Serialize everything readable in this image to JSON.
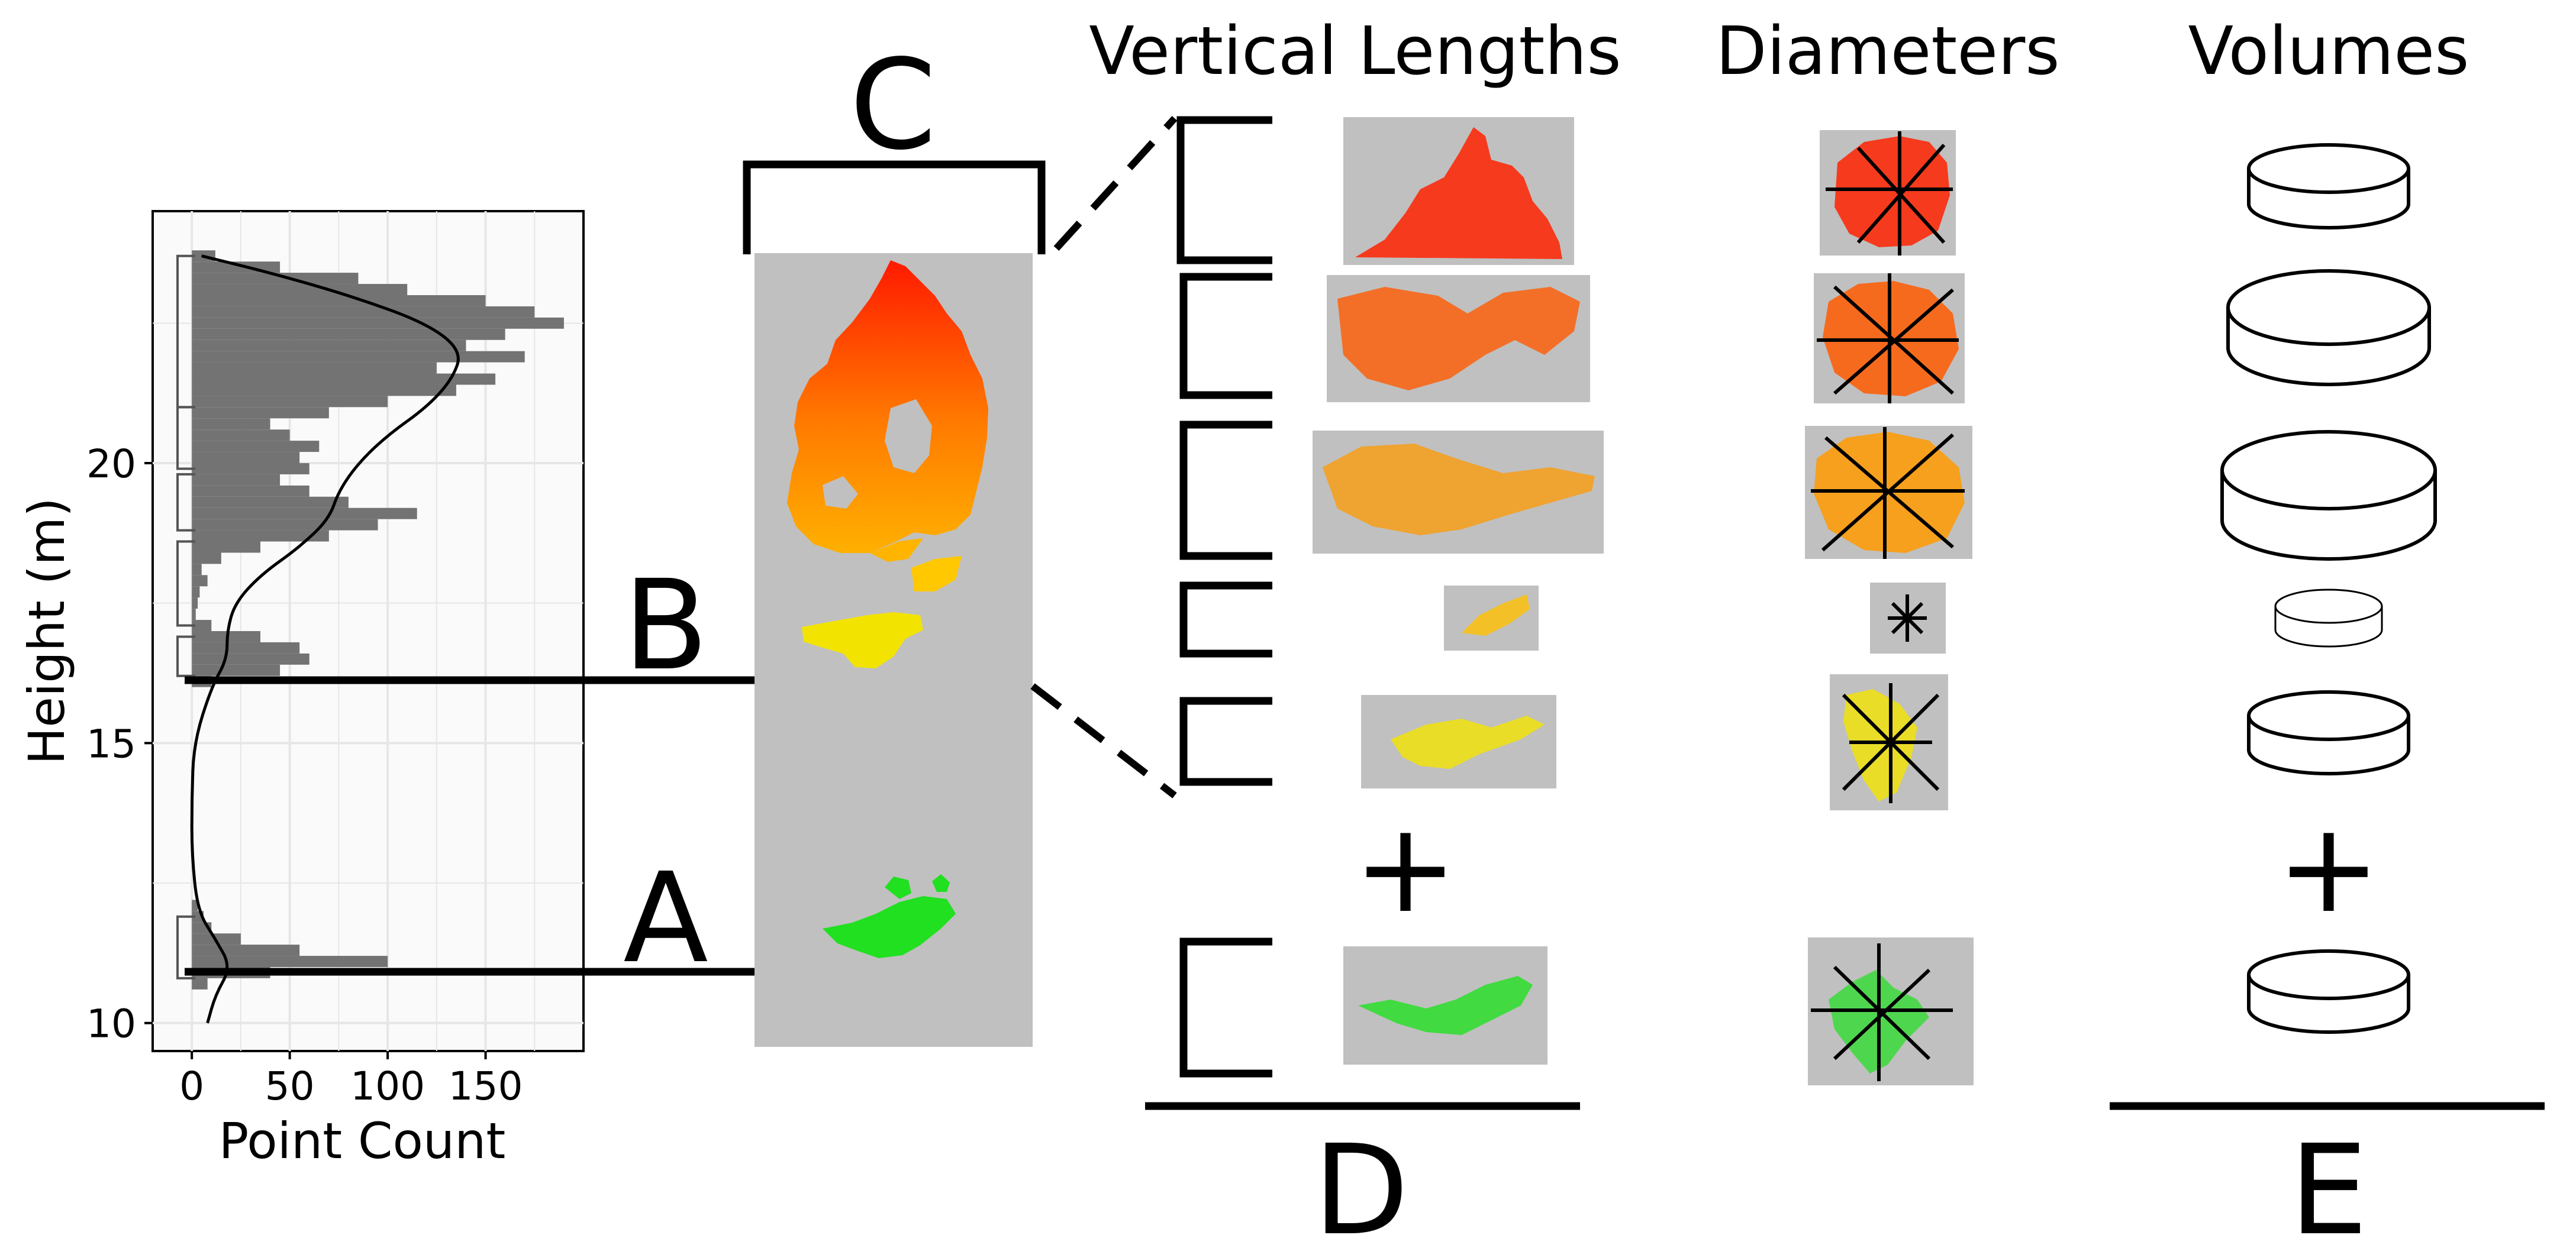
{
  "headers": {
    "vertical_lengths": "Vertical Lengths",
    "diameters": "Diameters",
    "volumes": "Volumes"
  },
  "labels": {
    "a": "A",
    "b": "B",
    "c": "C",
    "d": "D",
    "e": "E"
  },
  "operators": {
    "plus_left": "+",
    "plus_right": "+"
  },
  "colors": {
    "background_panel": "#c0c0c0",
    "histogram_bar": "#737373",
    "gradient_top": "#ff1a00",
    "gradient_mid": "#ff9900",
    "gradient_low": "#f5e400",
    "ground_layer": "#1ee01e"
  },
  "chart_data": {
    "type": "bar",
    "orientation": "horizontal",
    "xlabel": "Point Count",
    "ylabel": "Height (m)",
    "x_ticks": [
      "0",
      "50",
      "100",
      "150"
    ],
    "y_ticks": [
      "10",
      "15",
      "20"
    ],
    "xlim": [
      -20,
      200
    ],
    "ylim": [
      9.5,
      24.5
    ],
    "grid": true,
    "bin_width": 0.2,
    "bins": [
      {
        "h": 23.7,
        "c": 12
      },
      {
        "h": 23.5,
        "c": 45
      },
      {
        "h": 23.3,
        "c": 85
      },
      {
        "h": 23.1,
        "c": 110
      },
      {
        "h": 22.9,
        "c": 150
      },
      {
        "h": 22.7,
        "c": 175
      },
      {
        "h": 22.5,
        "c": 190
      },
      {
        "h": 22.3,
        "c": 160
      },
      {
        "h": 22.1,
        "c": 140
      },
      {
        "h": 21.9,
        "c": 170
      },
      {
        "h": 21.7,
        "c": 125
      },
      {
        "h": 21.5,
        "c": 155
      },
      {
        "h": 21.3,
        "c": 135
      },
      {
        "h": 21.1,
        "c": 100
      },
      {
        "h": 20.9,
        "c": 70
      },
      {
        "h": 20.7,
        "c": 40
      },
      {
        "h": 20.5,
        "c": 50
      },
      {
        "h": 20.3,
        "c": 65
      },
      {
        "h": 20.1,
        "c": 55
      },
      {
        "h": 19.9,
        "c": 60
      },
      {
        "h": 19.7,
        "c": 45
      },
      {
        "h": 19.5,
        "c": 60
      },
      {
        "h": 19.3,
        "c": 80
      },
      {
        "h": 19.1,
        "c": 115
      },
      {
        "h": 18.9,
        "c": 95
      },
      {
        "h": 18.7,
        "c": 70
      },
      {
        "h": 18.5,
        "c": 35
      },
      {
        "h": 18.3,
        "c": 15
      },
      {
        "h": 18.1,
        "c": 5
      },
      {
        "h": 17.9,
        "c": 8
      },
      {
        "h": 17.7,
        "c": 4
      },
      {
        "h": 17.5,
        "c": 3
      },
      {
        "h": 17.3,
        "c": 2
      },
      {
        "h": 17.1,
        "c": 10
      },
      {
        "h": 16.9,
        "c": 35
      },
      {
        "h": 16.7,
        "c": 55
      },
      {
        "h": 16.5,
        "c": 60
      },
      {
        "h": 16.3,
        "c": 45
      },
      {
        "h": 16.1,
        "c": 10
      },
      {
        "h": 12.1,
        "c": 3
      },
      {
        "h": 11.9,
        "c": 6
      },
      {
        "h": 11.7,
        "c": 10
      },
      {
        "h": 11.5,
        "c": 25
      },
      {
        "h": 11.3,
        "c": 55
      },
      {
        "h": 11.1,
        "c": 100
      },
      {
        "h": 10.9,
        "c": 40
      },
      {
        "h": 10.7,
        "c": 8
      }
    ],
    "density_curve": [
      {
        "h": 10.0,
        "c": 8
      },
      {
        "h": 10.5,
        "c": 12
      },
      {
        "h": 11.0,
        "c": 20
      },
      {
        "h": 11.5,
        "c": 12
      },
      {
        "h": 12.0,
        "c": 3
      },
      {
        "h": 13.0,
        "c": 0
      },
      {
        "h": 14.0,
        "c": 0
      },
      {
        "h": 15.0,
        "c": 1
      },
      {
        "h": 16.0,
        "c": 10
      },
      {
        "h": 16.5,
        "c": 18
      },
      {
        "h": 17.0,
        "c": 18
      },
      {
        "h": 17.5,
        "c": 22
      },
      {
        "h": 18.0,
        "c": 35
      },
      {
        "h": 18.5,
        "c": 55
      },
      {
        "h": 19.0,
        "c": 70
      },
      {
        "h": 19.5,
        "c": 75
      },
      {
        "h": 20.0,
        "c": 85
      },
      {
        "h": 20.5,
        "c": 100
      },
      {
        "h": 21.0,
        "c": 120
      },
      {
        "h": 21.5,
        "c": 133
      },
      {
        "h": 22.0,
        "c": 138
      },
      {
        "h": 22.5,
        "c": 120
      },
      {
        "h": 23.0,
        "c": 80
      },
      {
        "h": 23.4,
        "c": 40
      },
      {
        "h": 23.7,
        "c": 5
      }
    ],
    "segment_brackets": [
      [
        11.9,
        10.8
      ],
      [
        16.9,
        16.2
      ],
      [
        18.6,
        17.1
      ],
      [
        19.8,
        18.8
      ],
      [
        21.0,
        19.9
      ],
      [
        23.7,
        21.0
      ]
    ],
    "reference_lines": [
      {
        "label": "B",
        "h": 16.2
      },
      {
        "label": "A",
        "h": 10.8
      }
    ]
  }
}
